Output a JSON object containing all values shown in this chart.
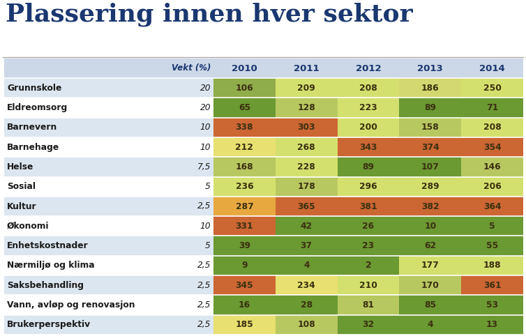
{
  "title": "Plassering innen hver sektor",
  "rows": [
    {
      "label": "Grunnskole",
      "vekt": "20",
      "values": [
        106,
        209,
        208,
        186,
        250
      ]
    },
    {
      "label": "Eldreomsorg",
      "vekt": "20",
      "values": [
        65,
        128,
        223,
        89,
        71
      ]
    },
    {
      "label": "Barnevern",
      "vekt": "10",
      "values": [
        338,
        303,
        200,
        158,
        208
      ]
    },
    {
      "label": "Barnehage",
      "vekt": "10",
      "values": [
        212,
        268,
        343,
        374,
        354
      ]
    },
    {
      "label": "Helse",
      "vekt": "7,5",
      "values": [
        168,
        228,
        89,
        107,
        146
      ]
    },
    {
      "label": "Sosial",
      "vekt": "5",
      "values": [
        236,
        178,
        296,
        289,
        206
      ]
    },
    {
      "label": "Kultur",
      "vekt": "2,5",
      "values": [
        287,
        365,
        381,
        382,
        364
      ]
    },
    {
      "label": "Økonomi",
      "vekt": "10",
      "values": [
        331,
        42,
        26,
        10,
        5
      ]
    },
    {
      "label": "Enhetskostnader",
      "vekt": "5",
      "values": [
        39,
        37,
        23,
        62,
        55
      ]
    },
    {
      "label": "Nærmiljø og klima",
      "vekt": "2,5",
      "values": [
        9,
        4,
        2,
        177,
        188
      ]
    },
    {
      "label": "Saksbehandling",
      "vekt": "2,5",
      "values": [
        345,
        234,
        210,
        170,
        361
      ]
    },
    {
      "label": "Vann, avløp og renovasjon",
      "vekt": "2,5",
      "values": [
        16,
        28,
        81,
        85,
        53
      ]
    },
    {
      "label": "Brukerperspektiv",
      "vekt": "2,5",
      "values": [
        185,
        108,
        32,
        4,
        13
      ]
    }
  ],
  "cell_colors": [
    [
      "#8fad4a",
      "#d4e06e",
      "#d4e06e",
      "#d4d870",
      "#d4e06e"
    ],
    [
      "#6b9932",
      "#b8c860",
      "#d4e06e",
      "#6b9932",
      "#6b9932"
    ],
    [
      "#cc6633",
      "#cc6633",
      "#d4e06e",
      "#b8c860",
      "#d4e06e"
    ],
    [
      "#e8e070",
      "#d4e06e",
      "#cc6633",
      "#cc6633",
      "#cc6633"
    ],
    [
      "#b8c860",
      "#d4e06e",
      "#6b9932",
      "#6b9932",
      "#b8c860"
    ],
    [
      "#d4e06e",
      "#b8c860",
      "#d4e06e",
      "#d4e06e",
      "#d4e06e"
    ],
    [
      "#e8a840",
      "#cc6633",
      "#cc6633",
      "#cc6633",
      "#cc6633"
    ],
    [
      "#cc6633",
      "#6b9932",
      "#6b9932",
      "#6b9932",
      "#6b9932"
    ],
    [
      "#6b9932",
      "#6b9932",
      "#6b9932",
      "#6b9932",
      "#6b9932"
    ],
    [
      "#6b9932",
      "#6b9932",
      "#6b9932",
      "#d4e06e",
      "#d4e06e"
    ],
    [
      "#cc6633",
      "#e8e070",
      "#d4e06e",
      "#b8c860",
      "#cc6633"
    ],
    [
      "#6b9932",
      "#6b9932",
      "#b8c860",
      "#6b9932",
      "#6b9932"
    ],
    [
      "#e8e070",
      "#b8c860",
      "#6b9932",
      "#6b9932",
      "#6b9932"
    ]
  ],
  "year_headers": [
    "2010",
    "2011",
    "2012",
    "2013",
    "2014"
  ],
  "header_bg": "#ccd8e8",
  "row_bg_light": "#dce6f0",
  "row_bg_white": "#ffffff",
  "title_color": "#1a3770",
  "header_text_color": "#1a3770",
  "label_text_color": "#1a1a1a",
  "cell_text_color": "#3a3010"
}
